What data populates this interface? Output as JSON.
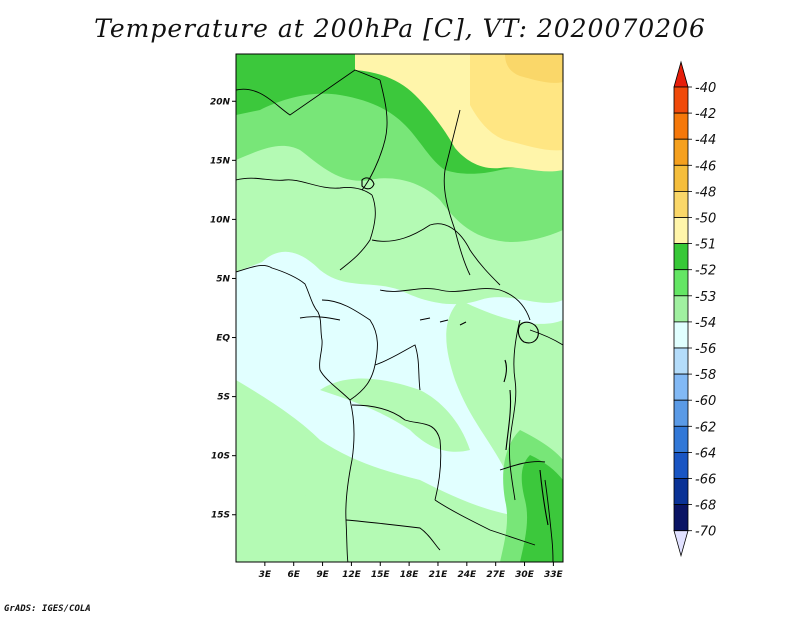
{
  "title": "Temperature at 200hPa [C], VT: 2020070206",
  "credit": "GrADS: IGES/COLA",
  "map": {
    "lon_range": [
      0,
      34
    ],
    "lat_range": [
      -19,
      24
    ],
    "lon_ticks": [
      "3E",
      "6E",
      "9E",
      "12E",
      "15E",
      "18E",
      "21E",
      "24E",
      "27E",
      "30E",
      "33E"
    ],
    "lat_ticks": [
      "20N",
      "15N",
      "10N",
      "5N",
      "EQ",
      "5S",
      "10S",
      "15S"
    ]
  },
  "colorbar": {
    "levels": [
      "-40",
      "-42",
      "-44",
      "-46",
      "-48",
      "-50",
      "-51",
      "-52",
      "-53",
      "-54",
      "-56",
      "-58",
      "-60",
      "-62",
      "-64",
      "-66",
      "-68",
      "-70"
    ],
    "colors": [
      "#e61e0a",
      "#f04a0a",
      "#f5780a",
      "#f5a01e",
      "#f5be3c",
      "#fad769",
      "#fff5aa",
      "#37c837",
      "#64e664",
      "#a0f0a0",
      "#e1ffff",
      "#b4dcfa",
      "#82b9f5",
      "#5a9ae6",
      "#3278d7",
      "#1955c3",
      "#0a3296",
      "#0a1464",
      "#e1e1ff"
    ]
  },
  "field_colors": {
    "cold": "#e1ffff",
    "light_green": "#b4fab4",
    "mid_green": "#78e678",
    "green": "#3cc83c",
    "pale_yellow": "#fff5aa",
    "yellow": "#ffe683",
    "orange": "#fad769"
  }
}
